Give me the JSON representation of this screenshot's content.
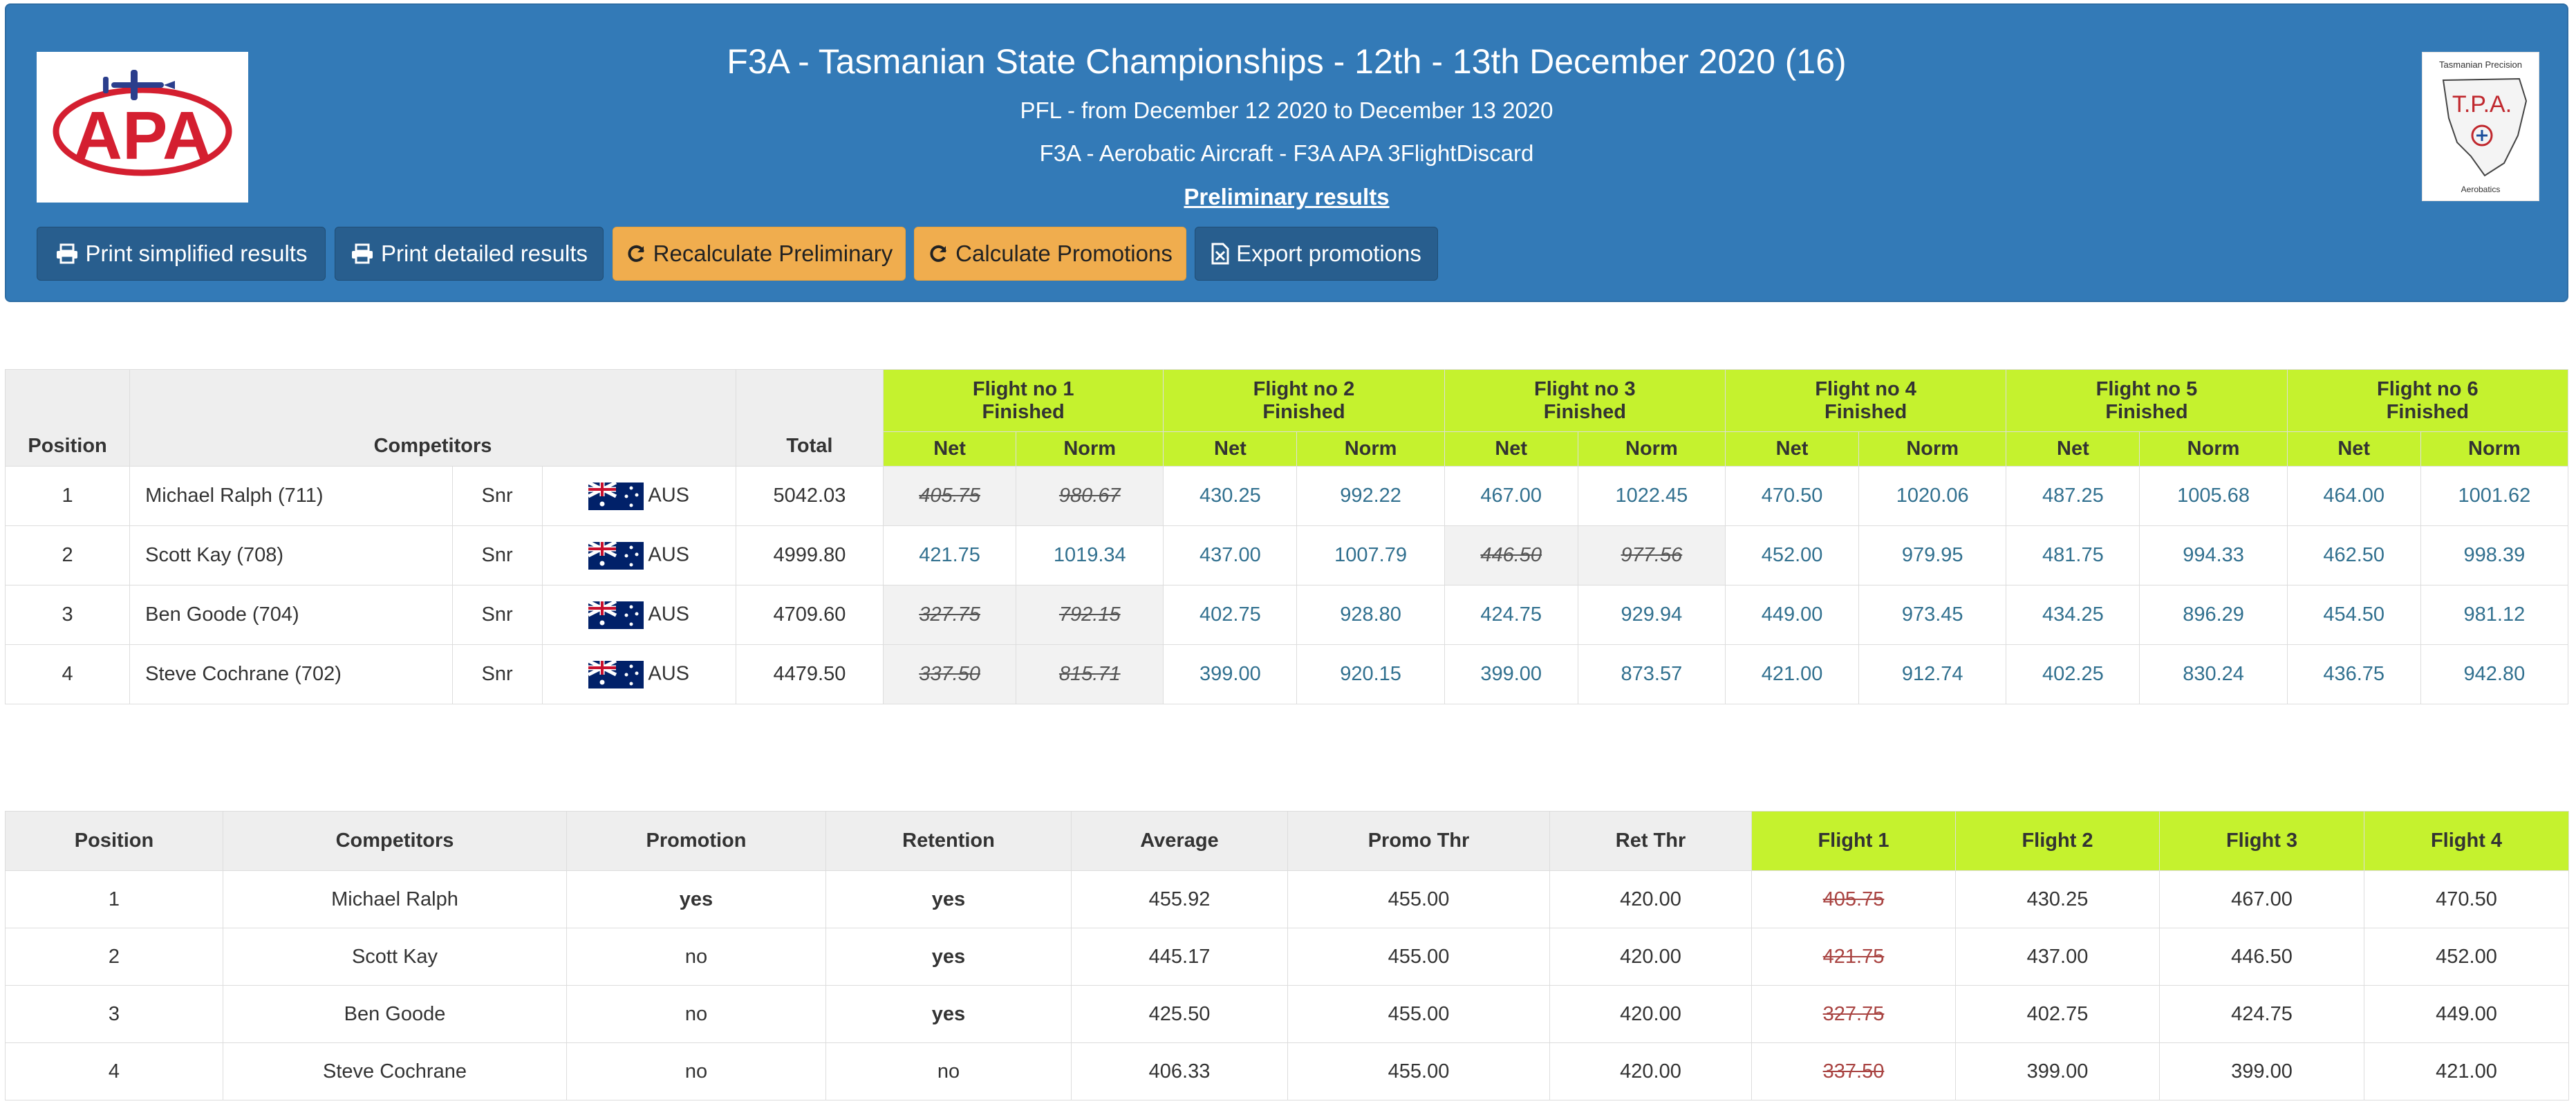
{
  "header": {
    "title": "F3A - Tasmanian State Championships - 12th - 13th December 2020 (16)",
    "subtitle1": "PFL - from December 12 2020 to December 13 2020",
    "subtitle2": "F3A - Aerobatic Aircraft - F3A APA 3FlightDiscard",
    "subtitle3": "Preliminary results",
    "logo_left_text": "APA",
    "logo_right": {
      "top": "Tasmanian Precision",
      "mid": "T.P.A.",
      "bottom": "Aerobatics"
    }
  },
  "toolbar": {
    "print_simplified": "Print simplified results",
    "print_detailed": "Print detailed results",
    "recalculate": "Recalculate Preliminary",
    "calc_promotions": "Calculate Promotions",
    "export_promotions": "Export promotions"
  },
  "colors": {
    "header_bg": "#337ab7",
    "warn": "#f0ad4e",
    "flight_header": "#c5f22e"
  },
  "results": {
    "col_position": "Position",
    "col_competitors": "Competitors",
    "col_total": "Total",
    "flights": [
      {
        "title": "Flight no 1",
        "status": "Finished"
      },
      {
        "title": "Flight no 2",
        "status": "Finished"
      },
      {
        "title": "Flight no 3",
        "status": "Finished"
      },
      {
        "title": "Flight no 4",
        "status": "Finished"
      },
      {
        "title": "Flight no 5",
        "status": "Finished"
      },
      {
        "title": "Flight no 6",
        "status": "Finished"
      }
    ],
    "net_label": "Net",
    "norm_label": "Norm",
    "rows": [
      {
        "pos": "1",
        "name": "Michael Ralph (711)",
        "class": "Snr",
        "country": "AUS",
        "total": "5042.03",
        "scores": [
          "405.75",
          "980.67",
          "430.25",
          "992.22",
          "467.00",
          "1022.45",
          "470.50",
          "1020.06",
          "487.25",
          "1005.68",
          "464.00",
          "1001.62"
        ],
        "discard": 0
      },
      {
        "pos": "2",
        "name": "Scott Kay (708)",
        "class": "Snr",
        "country": "AUS",
        "total": "4999.80",
        "scores": [
          "421.75",
          "1019.34",
          "437.00",
          "1007.79",
          "446.50",
          "977.56",
          "452.00",
          "979.95",
          "481.75",
          "994.33",
          "462.50",
          "998.39"
        ],
        "discard": 2
      },
      {
        "pos": "3",
        "name": "Ben Goode (704)",
        "class": "Snr",
        "country": "AUS",
        "total": "4709.60",
        "scores": [
          "327.75",
          "792.15",
          "402.75",
          "928.80",
          "424.75",
          "929.94",
          "449.00",
          "973.45",
          "434.25",
          "896.29",
          "454.50",
          "981.12"
        ],
        "discard": 0
      },
      {
        "pos": "4",
        "name": "Steve Cochrane (702)",
        "class": "Snr",
        "country": "AUS",
        "total": "4479.50",
        "scores": [
          "337.50",
          "815.71",
          "399.00",
          "920.15",
          "399.00",
          "873.57",
          "421.00",
          "912.74",
          "402.25",
          "830.24",
          "436.75",
          "942.80"
        ],
        "discard": 0
      }
    ]
  },
  "promotions": {
    "headers": [
      "Position",
      "Competitors",
      "Promotion",
      "Retention",
      "Average",
      "Promo Thr",
      "Ret Thr",
      "Flight 1",
      "Flight 2",
      "Flight 3",
      "Flight 4"
    ],
    "rows": [
      {
        "cells": [
          "1",
          "Michael Ralph",
          "yes",
          "yes",
          "455.92",
          "455.00",
          "420.00",
          "405.75",
          "430.25",
          "467.00",
          "470.50"
        ],
        "bold": [
          2,
          3
        ],
        "discard": 7
      },
      {
        "cells": [
          "2",
          "Scott Kay",
          "no",
          "yes",
          "445.17",
          "455.00",
          "420.00",
          "421.75",
          "437.00",
          "446.50",
          "452.00"
        ],
        "bold": [
          3
        ],
        "discard": 7
      },
      {
        "cells": [
          "3",
          "Ben Goode",
          "no",
          "yes",
          "425.50",
          "455.00",
          "420.00",
          "327.75",
          "402.75",
          "424.75",
          "449.00"
        ],
        "bold": [
          3
        ],
        "discard": 7
      },
      {
        "cells": [
          "4",
          "Steve Cochrane",
          "no",
          "no",
          "406.33",
          "455.00",
          "420.00",
          "337.50",
          "399.00",
          "399.00",
          "421.00"
        ],
        "bold": [],
        "discard": 7
      }
    ]
  }
}
